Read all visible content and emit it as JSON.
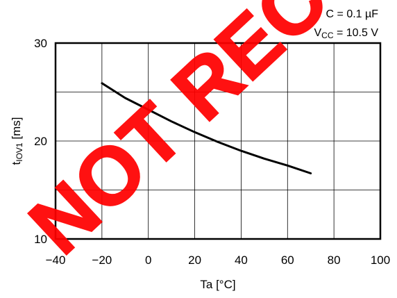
{
  "conditions": {
    "c": "C = 0.1 µF",
    "vcc_main": "V",
    "vcc_sub": "CC",
    "vcc_value": " = 10.5 V"
  },
  "y_axis": {
    "main": "t",
    "sub": "IOV1",
    "unit": " [ms]"
  },
  "watermark": "NOT RECOMMENDED",
  "chart_data": {
    "type": "line",
    "xlabel": "Ta [°C]",
    "ylabel": "tIOV1 [ms]",
    "xlim": [
      -40,
      100
    ],
    "ylim": [
      10,
      30
    ],
    "x_ticks": [
      -40,
      -20,
      0,
      20,
      40,
      60,
      80,
      100
    ],
    "y_ticks": [
      10,
      20,
      30
    ],
    "x_tick_labels": [
      "−40",
      "−20",
      "0",
      "20",
      "40",
      "60",
      "80",
      "100"
    ],
    "y_tick_labels": [
      "10",
      "20",
      "30"
    ],
    "grid": true,
    "series": [
      {
        "x": [
          -20,
          -10,
          0,
          10,
          20,
          30,
          40,
          50,
          60,
          70
        ],
        "y": [
          25.9,
          24.4,
          23.2,
          22.0,
          20.9,
          19.9,
          19.0,
          18.2,
          17.5,
          16.7
        ],
        "color": "#000000"
      }
    ]
  }
}
